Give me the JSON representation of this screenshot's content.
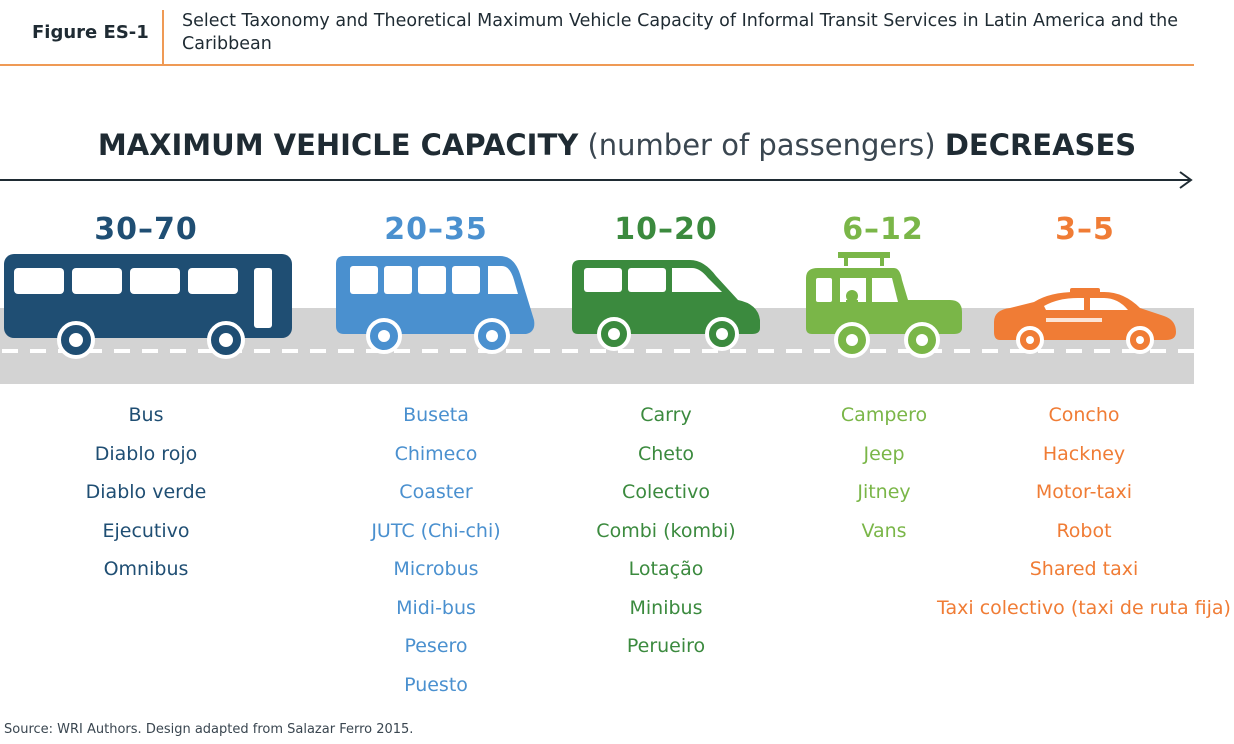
{
  "figure": {
    "label": "Figure ES-1",
    "title": "Select Taxonomy and Theoretical Maximum Vehicle Capacity of Informal Transit Services in Latin America and the Caribbean"
  },
  "heading": {
    "part1": "MAXIMUM VEHICLE CAPACITY",
    "part2": "(number of passengers)",
    "part3": "DECREASES"
  },
  "categories": [
    {
      "range": "30–70",
      "vehicle": "bus-icon",
      "color": "#1f4e73",
      "names": [
        "Bus",
        "Diablo rojo",
        "Diablo verde",
        "Ejecutivo",
        "Omnibus"
      ]
    },
    {
      "range": "20–35",
      "vehicle": "minibus-icon",
      "color": "#4a90cf",
      "names": [
        "Buseta",
        "Chimeco",
        "Coaster",
        "JUTC (Chi-chi)",
        "Microbus",
        "Midi-bus",
        "Pesero",
        "Puesto"
      ]
    },
    {
      "range": "10–20",
      "vehicle": "van-icon",
      "color": "#3b8a3e",
      "names": [
        "Carry",
        "Cheto",
        "Colectivo",
        "Combi (kombi)",
        "Lotação",
        "Minibus",
        "Perueiro"
      ]
    },
    {
      "range": "6–12",
      "vehicle": "jeep-icon",
      "color": "#7ab648",
      "names": [
        "Campero",
        "Jeep",
        "Jitney",
        "Vans"
      ]
    },
    {
      "range": "3–5",
      "vehicle": "taxi-icon",
      "color": "#f07c35",
      "names": [
        "Concho",
        "Hackney",
        "Motor-taxi",
        "Robot",
        "Shared taxi",
        "Taxi colectivo (taxi de ruta fija)"
      ]
    }
  ],
  "source": "Source: WRI Authors. Design adapted from Salazar Ferro 2015."
}
